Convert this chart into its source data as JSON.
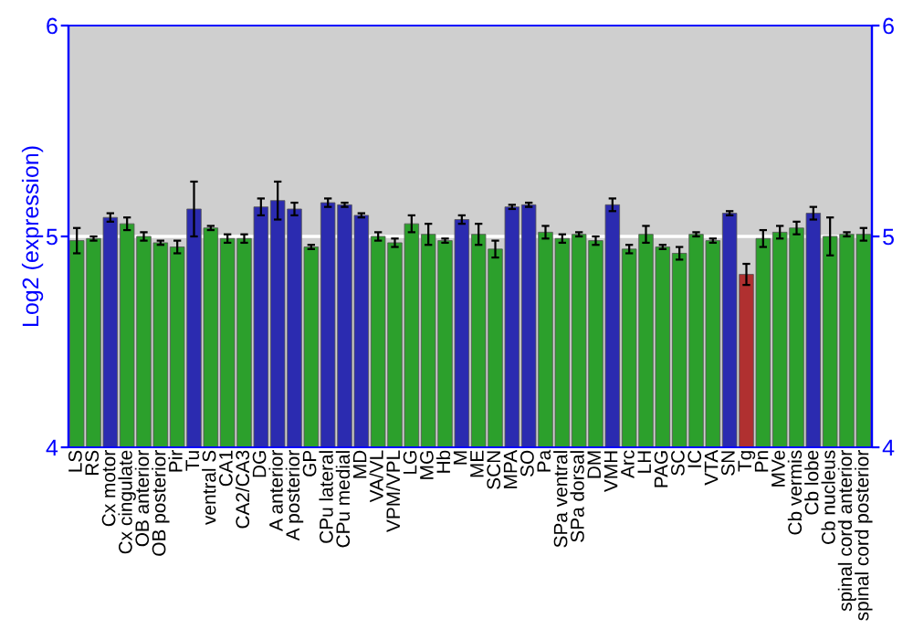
{
  "chart_data": {
    "type": "bar",
    "ylabel": "Log2 (expression)",
    "categories": [
      "LS",
      "RS",
      "Cx motor",
      "Cx cingulate",
      "OB anterior",
      "OB posterior",
      "Pir",
      "Tu",
      "ventral S",
      "CA1",
      "CA2/CA3",
      "DG",
      "A anterior",
      "A posterior",
      "GP",
      "CPu lateral",
      "CPu medial",
      "MD",
      "VA/VL",
      "VPM/VPL",
      "LG",
      "MG",
      "Hb",
      "M",
      "ME",
      "SCN",
      "MPA",
      "SO",
      "Pa",
      "SPa ventral",
      "SPa dorsal",
      "DM",
      "VMH",
      "Arc",
      "LH",
      "PAG",
      "SC",
      "IC",
      "VTA",
      "SN",
      "Tg",
      "Pn",
      "MVe",
      "Cb vermis",
      "Cb lobe",
      "Cb nucleus",
      "spinal cord anterior",
      "spinal cord posterior"
    ],
    "values": [
      4.98,
      4.99,
      5.09,
      5.06,
      5.0,
      4.97,
      4.95,
      5.13,
      5.04,
      4.99,
      4.99,
      5.14,
      5.17,
      5.13,
      4.95,
      5.16,
      5.15,
      5.1,
      5.0,
      4.97,
      5.06,
      5.01,
      4.98,
      5.08,
      5.01,
      4.94,
      5.14,
      5.15,
      5.02,
      4.99,
      5.01,
      4.98,
      5.15,
      4.94,
      5.01,
      4.95,
      4.92,
      5.01,
      4.98,
      5.11,
      4.82,
      4.99,
      5.02,
      5.04,
      5.11,
      5.0,
      5.01,
      5.01
    ],
    "errors": [
      0.06,
      0.01,
      0.02,
      0.03,
      0.02,
      0.01,
      0.03,
      0.13,
      0.01,
      0.02,
      0.02,
      0.04,
      0.09,
      0.03,
      0.01,
      0.02,
      0.01,
      0.01,
      0.02,
      0.02,
      0.04,
      0.05,
      0.01,
      0.02,
      0.05,
      0.04,
      0.01,
      0.01,
      0.03,
      0.02,
      0.01,
      0.02,
      0.03,
      0.02,
      0.04,
      0.01,
      0.03,
      0.01,
      0.01,
      0.01,
      0.05,
      0.04,
      0.03,
      0.03,
      0.03,
      0.09,
      0.01,
      0.03
    ],
    "colors": [
      "#2ca02c",
      "#2ca02c",
      "#2b2bb0",
      "#2ca02c",
      "#2ca02c",
      "#2ca02c",
      "#2ca02c",
      "#2b2bb0",
      "#2ca02c",
      "#2ca02c",
      "#2ca02c",
      "#2b2bb0",
      "#2b2bb0",
      "#2b2bb0",
      "#2ca02c",
      "#2b2bb0",
      "#2b2bb0",
      "#2b2bb0",
      "#2ca02c",
      "#2ca02c",
      "#2ca02c",
      "#2ca02c",
      "#2ca02c",
      "#2b2bb0",
      "#2ca02c",
      "#2ca02c",
      "#2b2bb0",
      "#2b2bb0",
      "#2ca02c",
      "#2ca02c",
      "#2ca02c",
      "#2ca02c",
      "#2b2bb0",
      "#2ca02c",
      "#2ca02c",
      "#2ca02c",
      "#2ca02c",
      "#2ca02c",
      "#2ca02c",
      "#2b2bb0",
      "#b03030",
      "#2ca02c",
      "#2ca02c",
      "#2ca02c",
      "#2b2bb0",
      "#2ca02c",
      "#2ca02c",
      "#2ca02c"
    ],
    "ylim": [
      4,
      6
    ],
    "yticks": [
      4,
      5,
      6
    ],
    "y2lim": [
      4,
      6
    ],
    "y2ticks": [
      4,
      5,
      6
    ],
    "ref_lines": [
      {
        "axis": "y",
        "value": 5,
        "color": "#ffffff"
      }
    ],
    "grid": false,
    "legend": false
  }
}
